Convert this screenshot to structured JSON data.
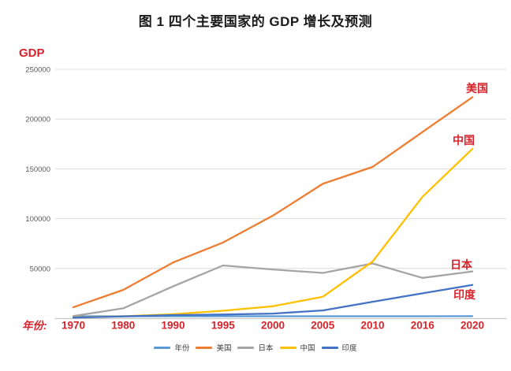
{
  "page": {
    "title": "图 1 四个主要国家的 GDP 增长及预测"
  },
  "axis_labels": {
    "y": "GDP",
    "x_prefix": "年份:"
  },
  "colors": {
    "title_text": "#1a1a1a",
    "red_label": "#d6232b",
    "y_tick_gray": "#595959",
    "gridline": "#dcdcdc",
    "axis_line": "#c6c6c6",
    "legend_text": "#3d3d3d",
    "background": "#ffffff"
  },
  "chart_data": {
    "type": "line",
    "title": "图 1 四个主要国家的 GDP 增长及预测",
    "ylabel": "GDP",
    "xlabel": "年份",
    "categories": [
      "1970",
      "1980",
      "1990",
      "1995",
      "2000",
      "2005",
      "2010",
      "2016",
      "2020"
    ],
    "y_ticks": [
      250000,
      200000,
      150000,
      100000,
      50000
    ],
    "ylim": [
      0,
      250000
    ],
    "grid": "horizontal-only",
    "legend_position": "bottom-center",
    "series": [
      {
        "key": "nianfen",
        "name": "年份",
        "color": "#5B9BD5",
        "values": [
          1970,
          1980,
          1990,
          1995,
          2000,
          2005,
          2010,
          2016,
          2020
        ]
      },
      {
        "key": "usa",
        "name": "美国",
        "color": "#ED7D31",
        "values": [
          11000,
          28500,
          56000,
          76000,
          103000,
          135000,
          152000,
          187000,
          222000
        ]
      },
      {
        "key": "japan",
        "name": "日本",
        "color": "#A5A5A5",
        "values": [
          2100,
          10000,
          32000,
          53000,
          49000,
          45500,
          55000,
          40500,
          47000
        ]
      },
      {
        "key": "china",
        "name": "中国",
        "color": "#FFC000",
        "values": [
          900,
          2000,
          4000,
          7500,
          12000,
          21500,
          57000,
          122000,
          170000
        ]
      },
      {
        "key": "india",
        "name": "印度",
        "color": "#4472C4",
        "values": [
          600,
          1800,
          3200,
          3700,
          4700,
          7800,
          16500,
          25000,
          33500
        ]
      }
    ],
    "annotations": [
      {
        "key": "usa",
        "text": "美国",
        "x": 605,
        "y": 117
      },
      {
        "key": "china",
        "text": "中国",
        "x": 588,
        "y": 183
      },
      {
        "key": "japan",
        "text": "日本",
        "x": 585,
        "y": 341
      },
      {
        "key": "india",
        "text": "印度",
        "x": 589,
        "y": 379
      }
    ]
  }
}
